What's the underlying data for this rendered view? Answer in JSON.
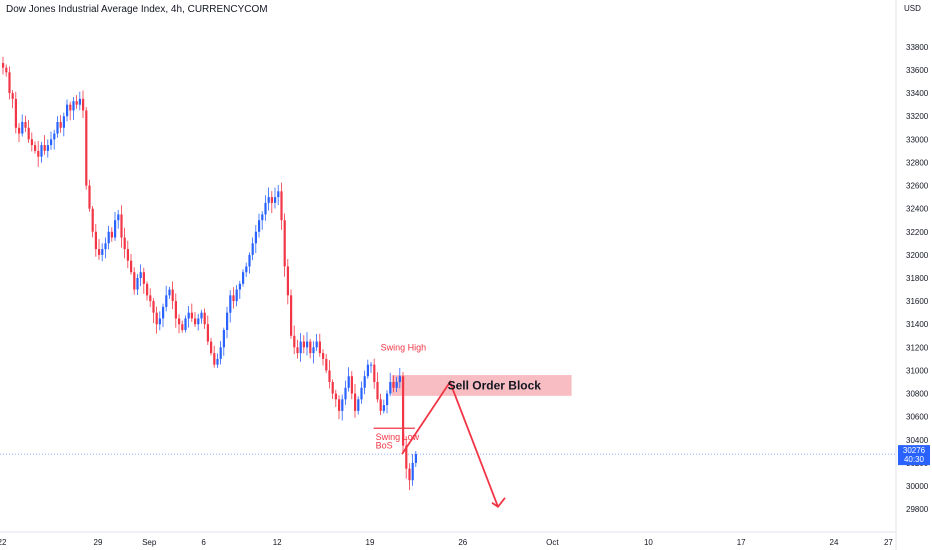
{
  "header": {
    "title": "Dow Jones Industrial Average Index, 4h, CURRENCYCOM"
  },
  "price_scale": {
    "currency": "USD",
    "last_price": "30276",
    "countdown": "40:30"
  },
  "colors": {
    "up": "#2962ff",
    "down": "#f23645",
    "block": "#f7b2b7",
    "grid": "#e0e3eb",
    "tag": "#2962ff"
  },
  "annotations": {
    "swing_high": "Swing High",
    "swing_low": "Swing Low",
    "bos": "BoS",
    "sell_order_block": "Sell Order Block"
  },
  "chart_data": {
    "type": "candlestick",
    "title": "Dow Jones Industrial Average Index, 4h, CURRENCYCOM",
    "ylabel": "USD",
    "ylim": [
      29700,
      34000
    ],
    "y_ticks": [
      29800,
      30000,
      30200,
      30400,
      30600,
      30800,
      31000,
      31200,
      31400,
      31600,
      31800,
      32000,
      32200,
      32400,
      32600,
      32800,
      33000,
      33200,
      33400,
      33600,
      33800
    ],
    "x_ticks": [
      {
        "label": "22",
        "index": 0
      },
      {
        "label": "29",
        "index": 30
      },
      {
        "label": "Sep",
        "index": 46
      },
      {
        "label": "6",
        "index": 63
      },
      {
        "label": "12",
        "index": 86
      },
      {
        "label": "19",
        "index": 115
      },
      {
        "label": "26",
        "index": 144
      },
      {
        "label": "Oct",
        "index": 172
      },
      {
        "label": "10",
        "index": 202
      },
      {
        "label": "17",
        "index": 231
      },
      {
        "label": "24",
        "index": 260
      },
      {
        "label": "27",
        "index": 277
      }
    ],
    "closes": [
      33620,
      33580,
      33400,
      33350,
      33100,
      33050,
      33150,
      33100,
      33000,
      32950,
      32900,
      32850,
      32950,
      32900,
      32950,
      33000,
      33050,
      33150,
      33100,
      33200,
      33300,
      33250,
      33330,
      33300,
      33350,
      33250,
      32600,
      32400,
      32200,
      32050,
      32000,
      32050,
      32100,
      32200,
      32150,
      32300,
      32350,
      32150,
      32050,
      31950,
      31850,
      31700,
      31800,
      31850,
      31750,
      31650,
      31600,
      31500,
      31400,
      31450,
      31550,
      31650,
      31700,
      31600,
      31450,
      31400,
      31350,
      31450,
      31500,
      31450,
      31400,
      31450,
      31500,
      31400,
      31250,
      31150,
      31050,
      31100,
      31200,
      31350,
      31500,
      31650,
      31600,
      31700,
      31750,
      31850,
      31900,
      32000,
      32100,
      32200,
      32300,
      32350,
      32450,
      32500,
      32450,
      32500,
      32550,
      32300,
      31900,
      31650,
      31300,
      31200,
      31150,
      31250,
      31200,
      31250,
      31150,
      31200,
      31250,
      31150,
      31100,
      31000,
      30900,
      30800,
      30750,
      30650,
      30750,
      30850,
      30950,
      30800,
      30650,
      30750,
      30850,
      30950,
      31050,
      31050,
      30900,
      30750,
      30650,
      30700,
      30800,
      30900,
      30850,
      30900,
      30950,
      30350,
      30150,
      30050,
      30200,
      30276
    ],
    "events": [
      {
        "label": "Swing High",
        "index": 123,
        "price": 31070
      },
      {
        "label": "Swing Low",
        "index": 118,
        "price": 30500
      },
      {
        "label": "BoS",
        "index": 123,
        "price": 30350
      }
    ],
    "sell_order_block": {
      "price_from": 30780,
      "price_to": 30960,
      "start_index": 123,
      "end_index": 178
    },
    "projection": [
      {
        "index": 125,
        "price": 30276
      },
      {
        "index": 140,
        "price": 30900
      },
      {
        "index": 155,
        "price": 29820
      }
    ],
    "grid": false
  }
}
